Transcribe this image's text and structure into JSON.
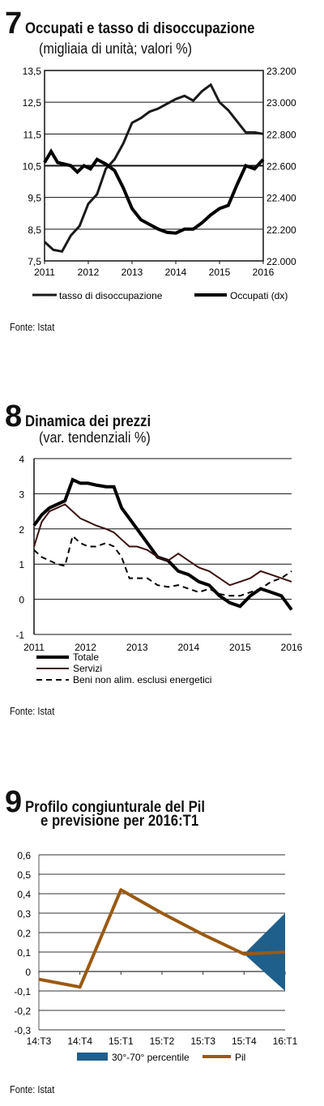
{
  "chart_data": [
    {
      "type": "line",
      "number": "7",
      "title": "Occupati e tasso di disoccupazione",
      "subtitle": "(migliaia di unità; valori %)",
      "xlabels": [
        "2011",
        "2012",
        "2013",
        "2014",
        "2015",
        "2016"
      ],
      "y_left_ticks": [
        "13,5",
        "12,5",
        "11,5",
        "10,5",
        "9,5",
        "8,5",
        "7,5"
      ],
      "y_left_range": [
        7.5,
        13.5
      ],
      "y_right_ticks": [
        "23.200",
        "23.000",
        "22.800",
        "22.600",
        "22.400",
        "22.200",
        "22.000"
      ],
      "y_right_range": [
        22000,
        23200
      ],
      "gridlines": "horizontal",
      "legend_position": "bottom",
      "series": [
        {
          "name": "tasso di disoccupazione",
          "axis": "left",
          "x": [
            2011.0,
            2011.2,
            2011.4,
            2011.6,
            2011.8,
            2012.0,
            2012.2,
            2012.4,
            2012.6,
            2012.8,
            2013.0,
            2013.2,
            2013.4,
            2013.6,
            2013.8,
            2014.0,
            2014.2,
            2014.4,
            2014.6,
            2014.8,
            2015.0,
            2015.2,
            2015.4,
            2015.6,
            2015.8,
            2016.0
          ],
          "values": [
            8.1,
            7.85,
            7.8,
            8.3,
            8.6,
            9.3,
            9.6,
            10.4,
            10.7,
            11.2,
            11.85,
            12.0,
            12.2,
            12.3,
            12.45,
            12.6,
            12.7,
            12.55,
            12.85,
            13.05,
            12.5,
            12.25,
            11.9,
            11.55,
            11.55,
            11.5
          ]
        },
        {
          "name": "Occupati (dx)",
          "axis": "right",
          "x": [
            2011.0,
            2011.15,
            2011.3,
            2011.45,
            2011.6,
            2011.75,
            2011.9,
            2012.05,
            2012.2,
            2012.4,
            2012.6,
            2012.8,
            2013.0,
            2013.2,
            2013.4,
            2013.6,
            2013.8,
            2014.0,
            2014.2,
            2014.4,
            2014.6,
            2014.8,
            2015.0,
            2015.2,
            2015.4,
            2015.6,
            2015.8,
            2016.0
          ],
          "values": [
            22620,
            22690,
            22620,
            22610,
            22600,
            22560,
            22600,
            22580,
            22640,
            22610,
            22570,
            22460,
            22330,
            22260,
            22230,
            22200,
            22180,
            22175,
            22200,
            22200,
            22240,
            22290,
            22330,
            22350,
            22480,
            22600,
            22580,
            22640
          ]
        }
      ]
    },
    {
      "type": "line",
      "number": "8",
      "title": "Dinamica dei prezzi",
      "subtitle": "(var. tendenziali %)",
      "xlabels": [
        "2011",
        "2012",
        "2013",
        "2014",
        "2015",
        "2016"
      ],
      "y_ticks": [
        "4",
        "3",
        "2",
        "1",
        "0",
        "-1"
      ],
      "y_range": [
        -1,
        4
      ],
      "gridlines": "horizontal",
      "legend_position": "bottom",
      "series": [
        {
          "name": "Totale",
          "style": "solid-thick",
          "x": [
            2011.0,
            2011.15,
            2011.3,
            2011.45,
            2011.6,
            2011.75,
            2011.9,
            2012.05,
            2012.2,
            2012.4,
            2012.55,
            2012.7,
            2012.85,
            2013.0,
            2013.2,
            2013.4,
            2013.6,
            2013.8,
            2014.0,
            2014.2,
            2014.4,
            2014.6,
            2014.8,
            2015.0,
            2015.2,
            2015.4,
            2015.6,
            2015.8,
            2016.0
          ],
          "values": [
            2.1,
            2.4,
            2.6,
            2.7,
            2.8,
            3.4,
            3.3,
            3.3,
            3.25,
            3.2,
            3.2,
            2.6,
            2.3,
            2.0,
            1.6,
            1.2,
            1.1,
            0.8,
            0.7,
            0.5,
            0.4,
            0.1,
            -0.1,
            -0.2,
            0.1,
            0.3,
            0.2,
            0.1,
            -0.3
          ]
        },
        {
          "name": "Servizi",
          "style": "solid-thin",
          "x": [
            2011.0,
            2011.15,
            2011.3,
            2011.45,
            2011.6,
            2011.75,
            2011.9,
            2012.05,
            2012.2,
            2012.4,
            2012.55,
            2012.7,
            2012.85,
            2013.0,
            2013.2,
            2013.4,
            2013.6,
            2013.8,
            2014.0,
            2014.2,
            2014.4,
            2014.6,
            2014.8,
            2015.0,
            2015.2,
            2015.4,
            2015.6,
            2015.8,
            2016.0
          ],
          "values": [
            1.5,
            2.2,
            2.5,
            2.6,
            2.7,
            2.5,
            2.3,
            2.2,
            2.1,
            2.0,
            1.9,
            1.7,
            1.5,
            1.5,
            1.4,
            1.2,
            1.1,
            1.3,
            1.1,
            0.9,
            0.8,
            0.6,
            0.4,
            0.5,
            0.6,
            0.8,
            0.7,
            0.6,
            0.5
          ]
        },
        {
          "name": "Beni non alim. esclusi energetici",
          "style": "dashed",
          "x": [
            2011.0,
            2011.15,
            2011.3,
            2011.45,
            2011.6,
            2011.75,
            2011.9,
            2012.05,
            2012.2,
            2012.4,
            2012.55,
            2012.7,
            2012.85,
            2013.0,
            2013.2,
            2013.4,
            2013.6,
            2013.8,
            2014.0,
            2014.2,
            2014.4,
            2014.6,
            2014.8,
            2015.0,
            2015.2,
            2015.4,
            2015.6,
            2015.8,
            2016.0
          ],
          "values": [
            1.4,
            1.2,
            1.1,
            1.0,
            0.95,
            1.8,
            1.6,
            1.5,
            1.5,
            1.6,
            1.5,
            1.2,
            0.6,
            0.6,
            0.6,
            0.4,
            0.35,
            0.4,
            0.3,
            0.2,
            0.3,
            0.15,
            0.1,
            0.1,
            0.2,
            0.3,
            0.5,
            0.6,
            0.8
          ]
        }
      ]
    },
    {
      "type": "line",
      "number": "9",
      "title": "Profilo congiunturale del Pil",
      "title2": "e previsione per 2016:T1",
      "categories": [
        "14:T3",
        "14:T4",
        "15:T1",
        "15:T2",
        "15:T3",
        "15:T4",
        "16:T1"
      ],
      "y_ticks": [
        "0,6",
        "0,5",
        "0,4",
        "0,3",
        "0,2",
        "0,1",
        "0",
        "-0,1",
        "-0,2",
        "-0,3"
      ],
      "y_range": [
        -0.3,
        0.6
      ],
      "gridlines": "horizontal",
      "legend_position": "bottom",
      "series": [
        {
          "name": "Pil",
          "values": [
            -0.04,
            -0.08,
            0.42,
            0.3,
            0.19,
            0.09,
            0.1
          ]
        },
        {
          "name": "30°-70° percentile",
          "type": "band",
          "from_category": "15:T4",
          "low": [
            0.09,
            -0.1
          ],
          "high": [
            0.09,
            0.3
          ]
        }
      ]
    }
  ],
  "source": "Fonte: Istat",
  "colors": {
    "pil": "#9a5a12",
    "band": "#1f5f8c",
    "dark": "#111111",
    "servizi": "#3a1010"
  }
}
